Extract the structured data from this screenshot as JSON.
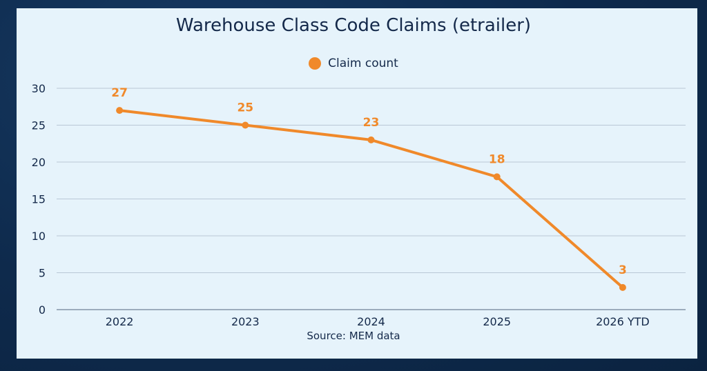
{
  "colors": {
    "series": "#f0892a",
    "grid": "#b9c7d6",
    "axis": "#6f8296",
    "text": "#14294a"
  },
  "chart_data": {
    "type": "line",
    "title": "Warehouse Class Code Claims (etrailer)",
    "source": "Source: MEM data",
    "categories": [
      "2022",
      "2023",
      "2024",
      "2025",
      "2026 YTD"
    ],
    "series": [
      {
        "name": "Claim count",
        "values": [
          27,
          25,
          23,
          18,
          3
        ]
      }
    ],
    "data_labels": [
      "27",
      "25",
      "23",
      "18",
      "3"
    ],
    "y_ticks": [
      0,
      5,
      10,
      15,
      20,
      25,
      30
    ],
    "ylim": [
      0,
      30
    ],
    "xlabel": "",
    "ylabel": "",
    "grid": true,
    "legend_position": "top-center"
  }
}
